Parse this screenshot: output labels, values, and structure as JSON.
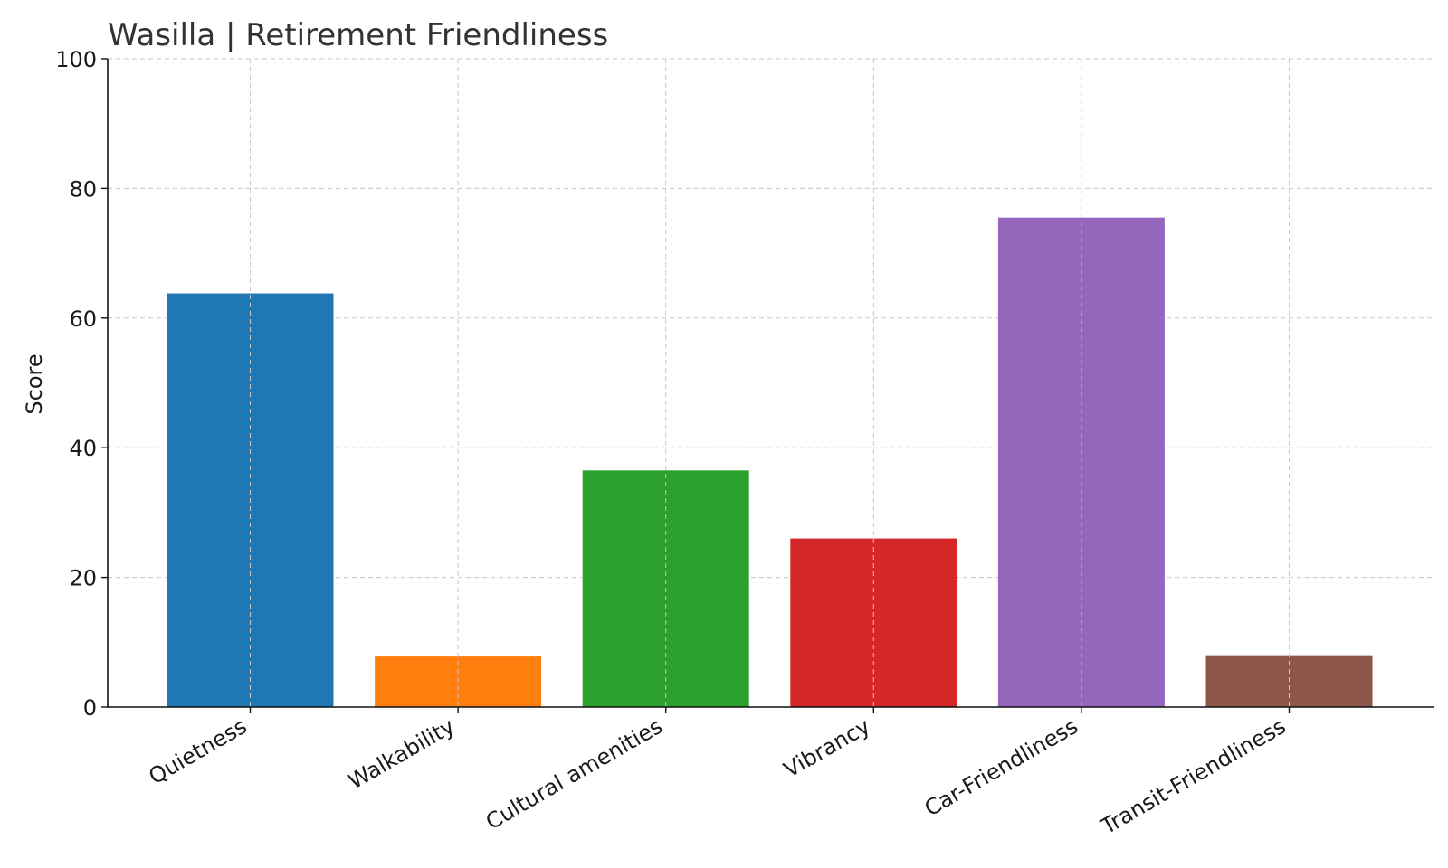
{
  "chart_data": {
    "type": "bar",
    "title": "Wasilla | Retirement Friendliness",
    "xlabel": "",
    "ylabel": "Score",
    "ylim": [
      0,
      100
    ],
    "yticks": [
      "0",
      "20",
      "40",
      "60",
      "80",
      "100"
    ],
    "grid": true,
    "categories": [
      "Quietness",
      "Walkability",
      "Cultural amenities",
      "Vibrancy",
      "Car-Friendliness",
      "Transit-Friendliness"
    ],
    "values": [
      63.8,
      7.8,
      36.5,
      26.0,
      75.5,
      8.0
    ],
    "colors": [
      "#1f77b4",
      "#ff7f0e",
      "#2ca02c",
      "#d62728",
      "#9467bd",
      "#8c564b"
    ]
  }
}
